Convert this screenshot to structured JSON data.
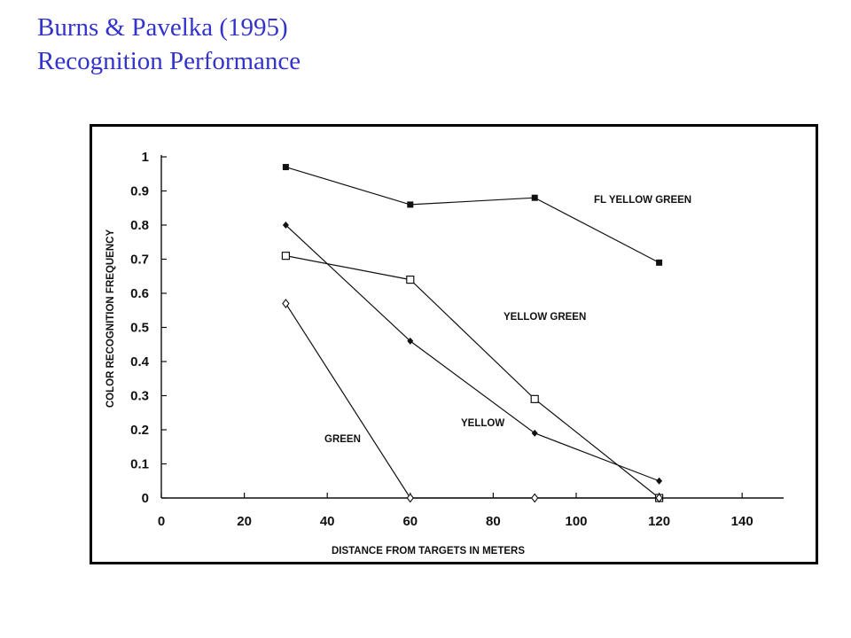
{
  "slide": {
    "title_line1": "Burns & Pavelka (1995)",
    "title_line2": "Recognition Performance"
  },
  "colors": {
    "title": "#3333cc",
    "ink": "#111111"
  },
  "chart_data": {
    "type": "line",
    "xlabel": "DISTANCE FROM TARGETS IN METERS",
    "ylabel": "COLOR RECOGNITION FREQUENCY",
    "xlim": [
      0,
      150
    ],
    "ylim": [
      0,
      1
    ],
    "xticks": [
      "0",
      "20",
      "40",
      "60",
      "80",
      "100",
      "120",
      "140"
    ],
    "yticks": [
      "0",
      "0.1",
      "0.2",
      "0.3",
      "0.4",
      "0.5",
      "0.6",
      "0.7",
      "0.8",
      "0.9",
      "1"
    ],
    "grid": false,
    "legend": "inline labels",
    "series": [
      {
        "name": "FL YELLOW GREEN",
        "marker": "filled-square",
        "x": [
          30,
          60,
          90,
          120
        ],
        "y": [
          0.97,
          0.86,
          0.88,
          0.69
        ]
      },
      {
        "name": "YELLOW GREEN",
        "marker": "open-square",
        "x": [
          30,
          60,
          90,
          120
        ],
        "y": [
          0.71,
          0.64,
          0.29,
          0.0
        ]
      },
      {
        "name": "YELLOW",
        "marker": "filled-diamond",
        "x": [
          30,
          60,
          90,
          120
        ],
        "y": [
          0.8,
          0.46,
          0.19,
          0.05
        ]
      },
      {
        "name": "GREEN",
        "marker": "open-diamond",
        "x": [
          30,
          60,
          90,
          120
        ],
        "y": [
          0.57,
          0.0,
          0.0,
          0.0
        ]
      }
    ]
  }
}
